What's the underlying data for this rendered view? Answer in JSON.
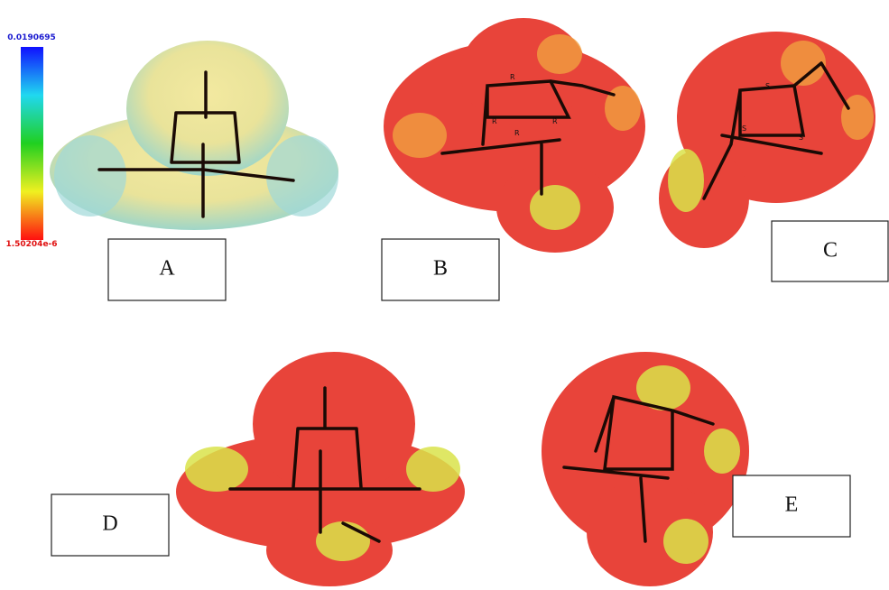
{
  "colorbar": {
    "max_label": "0.0190695",
    "min_label": "1.50204e-6"
  },
  "panels": [
    {
      "label": "A"
    },
    {
      "label": "B",
      "atom_labels": [
        "R",
        "R",
        "R",
        "R"
      ]
    },
    {
      "label": "C",
      "atom_labels": [
        "S",
        "S",
        "S"
      ]
    },
    {
      "label": "D"
    },
    {
      "label": "E"
    }
  ]
}
